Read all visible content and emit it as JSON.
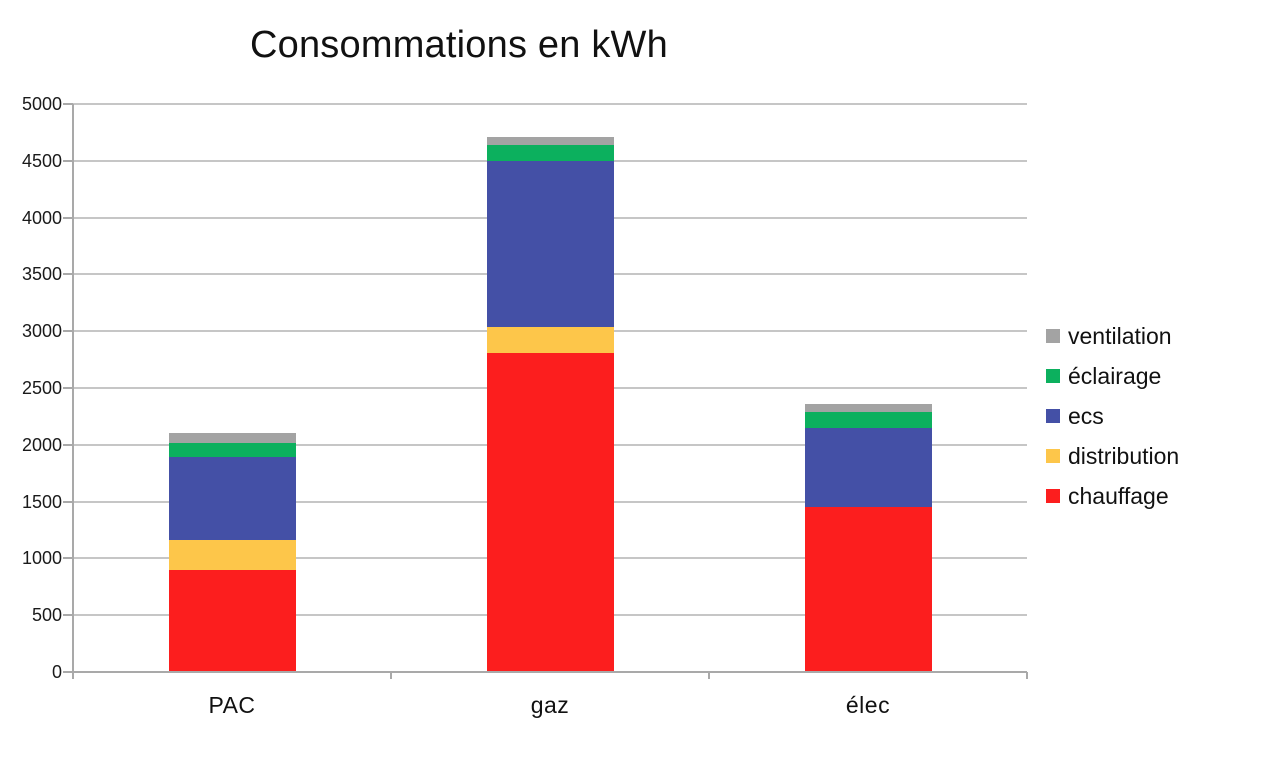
{
  "title": "Consommations en kWh",
  "chart_data": {
    "type": "bar",
    "stacked": true,
    "title": "Consommations en kWh",
    "categories": [
      "PAC",
      "gaz",
      "élec"
    ],
    "series": [
      {
        "name": "chauffage",
        "color": "#fc1e1e",
        "values": [
          900,
          2810,
          1450
        ]
      },
      {
        "name": "distribution",
        "color": "#fdc64a",
        "values": [
          260,
          230,
          0
        ]
      },
      {
        "name": "ecs",
        "color": "#4450a6",
        "values": [
          730,
          1460,
          700
        ]
      },
      {
        "name": "éclairage",
        "color": "#0cb05e",
        "values": [
          130,
          140,
          140
        ]
      },
      {
        "name": "ventilation",
        "color": "#a3a3a3",
        "values": [
          80,
          70,
          70
        ]
      }
    ],
    "ylim": [
      0,
      5000
    ],
    "ytick_step": 500,
    "y_tick_labels": [
      "0",
      "500",
      "1000",
      "1500",
      "2000",
      "2500",
      "3000",
      "3500",
      "4000",
      "4500",
      "5000"
    ],
    "xlabel": "",
    "ylabel": "",
    "grid": true,
    "legend_position": "right",
    "legend_order": [
      "ventilation",
      "éclairage",
      "ecs",
      "distribution",
      "chauffage"
    ]
  },
  "colors": {
    "background": "#ffffff",
    "gridline": "#c6c6c6",
    "axis": "#a9a9a9",
    "text": "#111111"
  }
}
